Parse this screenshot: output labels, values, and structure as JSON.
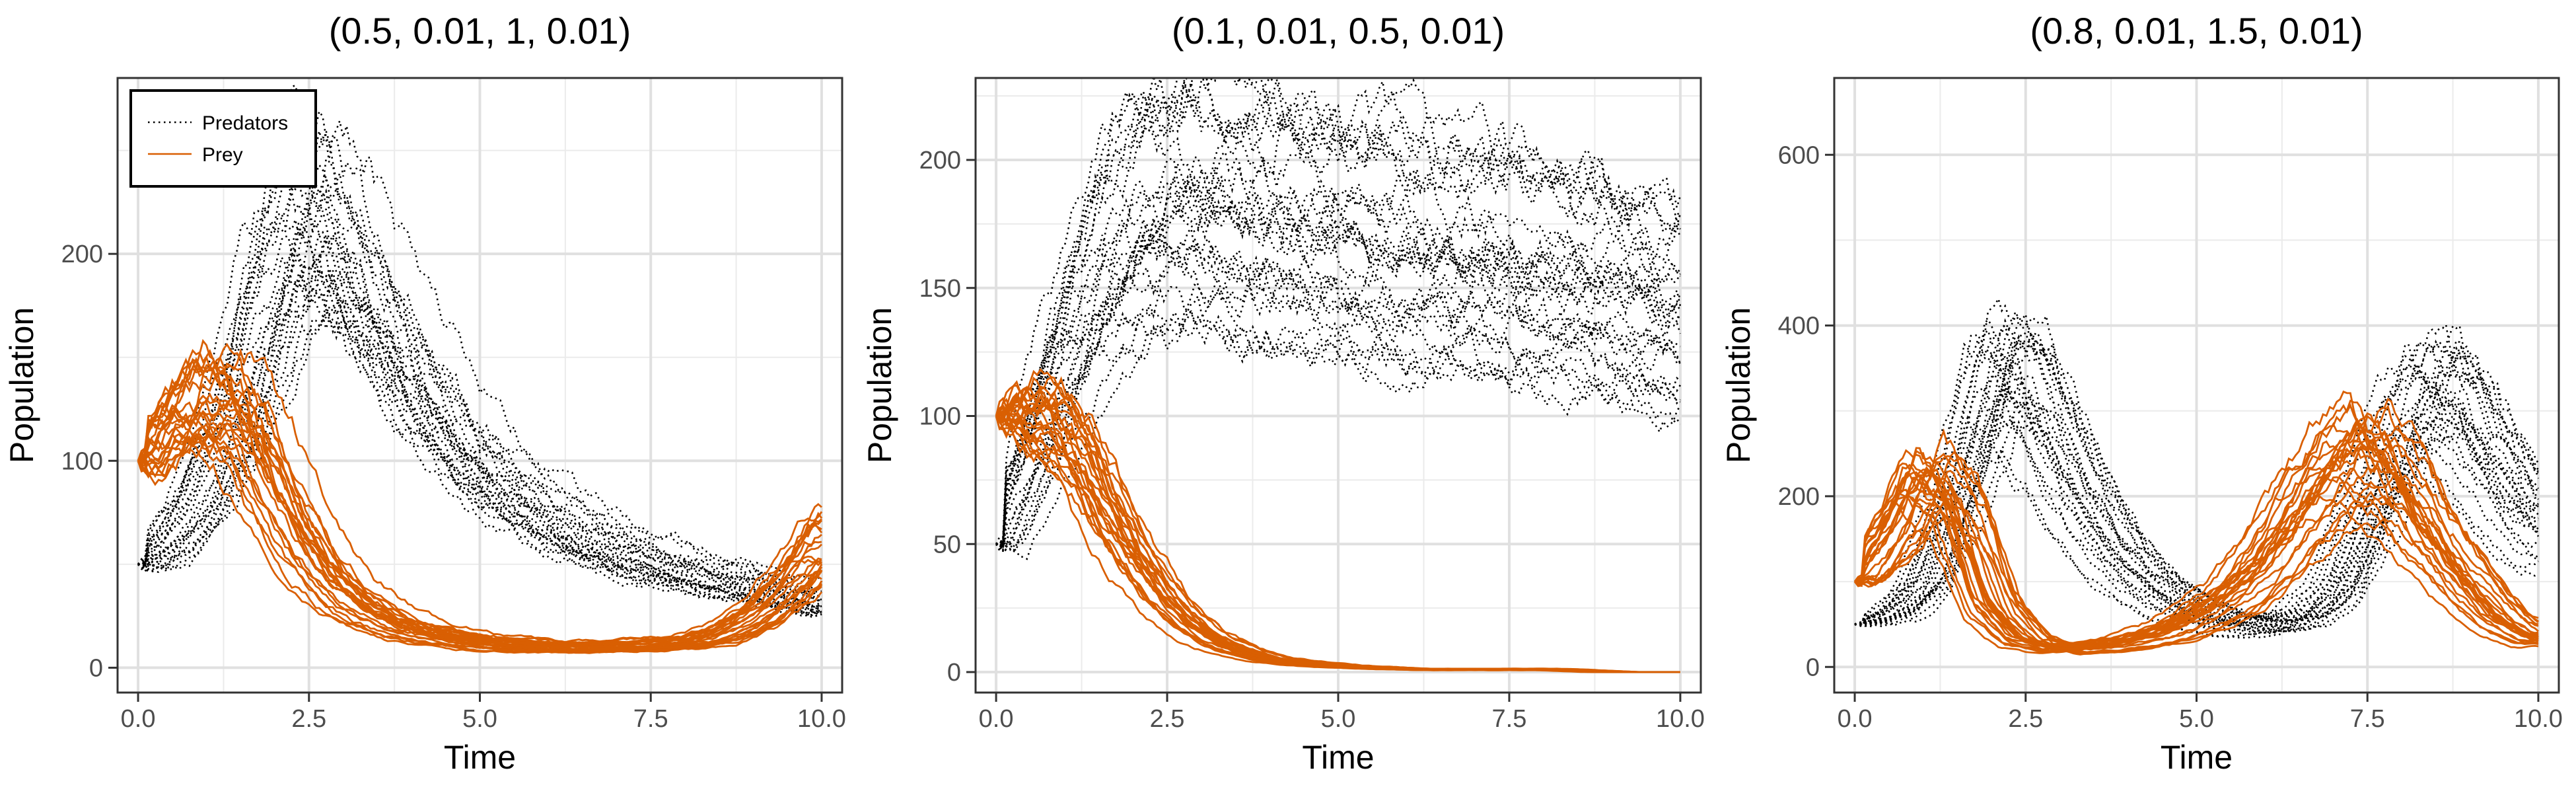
{
  "chart_data": [
    {
      "type": "line",
      "title": "(0.5, 0.01, 1, 0.01)",
      "xlabel": "Time",
      "ylabel": "Population",
      "xlim": [
        -0.3,
        10.3
      ],
      "ylim": [
        -12,
        285
      ],
      "xticks": [
        0,
        2.5,
        5,
        7.5,
        10
      ],
      "xtick_labels": [
        "0.0",
        "2.5",
        "5.0",
        "7.5",
        "10.0"
      ],
      "yticks": [
        0,
        100,
        200
      ],
      "ytick_labels": [
        "0",
        "100",
        "200"
      ],
      "grid": true,
      "legend": {
        "position": "top-left",
        "entries": [
          "Predators",
          "Prey"
        ]
      },
      "series": [
        {
          "name": "Predators",
          "style": "dotted",
          "color": "#000000",
          "runs": 25,
          "x": [
            0,
            0.5,
            1,
            1.5,
            2,
            2.5,
            3,
            3.5,
            4,
            5,
            6,
            7,
            8,
            9,
            10
          ],
          "values": [
            50,
            60,
            85,
            125,
            180,
            215,
            200,
            170,
            140,
            95,
            70,
            55,
            45,
            38,
            30
          ]
        },
        {
          "name": "Prey",
          "style": "solid",
          "color": "#d95f02",
          "runs": 25,
          "x": [
            0,
            0.5,
            1,
            1.5,
            2,
            2.5,
            3,
            3.5,
            4,
            5,
            6,
            7,
            8,
            8.5,
            9,
            9.5,
            10
          ],
          "values": [
            100,
            120,
            130,
            120,
            85,
            55,
            35,
            25,
            18,
            12,
            10,
            10,
            12,
            16,
            25,
            40,
            60
          ]
        }
      ]
    },
    {
      "type": "line",
      "title": "(0.1, 0.01, 0.5, 0.01)",
      "xlabel": "Time",
      "ylabel": "Population",
      "xlim": [
        -0.3,
        10.3
      ],
      "ylim": [
        -8,
        232
      ],
      "xticks": [
        0,
        2.5,
        5,
        7.5,
        10
      ],
      "xtick_labels": [
        "0.0",
        "2.5",
        "5.0",
        "7.5",
        "10.0"
      ],
      "yticks": [
        0,
        50,
        100,
        150,
        200
      ],
      "ytick_labels": [
        "0",
        "50",
        "100",
        "150",
        "200"
      ],
      "grid": true,
      "series": [
        {
          "name": "Predators",
          "style": "dotted",
          "color": "#000000",
          "runs": 25,
          "x": [
            0,
            0.5,
            1,
            1.5,
            2,
            2.5,
            3,
            3.5,
            4,
            5,
            6,
            7,
            8,
            9,
            10
          ],
          "values": [
            50,
            80,
            120,
            150,
            170,
            178,
            178,
            175,
            172,
            165,
            160,
            155,
            150,
            145,
            135
          ]
        },
        {
          "name": "Prey",
          "style": "solid",
          "color": "#d95f02",
          "runs": 25,
          "x": [
            0,
            0.5,
            1,
            1.5,
            2,
            2.5,
            3,
            3.5,
            4,
            5,
            6,
            7,
            8,
            9,
            10
          ],
          "values": [
            100,
            98,
            85,
            60,
            38,
            22,
            12,
            7,
            4,
            2,
            1,
            1,
            1,
            0,
            0
          ]
        }
      ]
    },
    {
      "type": "line",
      "title": "(0.8, 0.01, 1.5, 0.01)",
      "xlabel": "Time",
      "ylabel": "Population",
      "xlim": [
        -0.3,
        10.3
      ],
      "ylim": [
        -30,
        690
      ],
      "xticks": [
        0,
        2.5,
        5,
        7.5,
        10
      ],
      "xtick_labels": [
        "0.0",
        "2.5",
        "5.0",
        "7.5",
        "10.0"
      ],
      "yticks": [
        0,
        200,
        400,
        600
      ],
      "ytick_labels": [
        "0",
        "200",
        "400",
        "600"
      ],
      "grid": true,
      "series": [
        {
          "name": "Predators",
          "style": "dotted",
          "color": "#000000",
          "runs": 25,
          "x": [
            0,
            0.5,
            1,
            1.5,
            2,
            2.5,
            3,
            3.5,
            4,
            4.5,
            5,
            5.5,
            6,
            6.5,
            7,
            7.5,
            8,
            8.5,
            9,
            9.5,
            10
          ],
          "values": [
            50,
            58,
            90,
            190,
            320,
            310,
            230,
            160,
            110,
            80,
            60,
            48,
            45,
            50,
            80,
            160,
            260,
            300,
            260,
            200,
            150
          ]
        },
        {
          "name": "Prey",
          "style": "solid",
          "color": "#d95f02",
          "runs": 25,
          "x": [
            0,
            0.5,
            1,
            1.5,
            2,
            2.5,
            3,
            3.5,
            4,
            4.5,
            5,
            5.5,
            6,
            6.5,
            7,
            7.5,
            8,
            8.5,
            9,
            9.5,
            10
          ],
          "values": [
            100,
            150,
            215,
            180,
            70,
            30,
            20,
            22,
            28,
            38,
            55,
            80,
            120,
            170,
            220,
            240,
            200,
            140,
            90,
            50,
            30
          ]
        }
      ]
    }
  ]
}
